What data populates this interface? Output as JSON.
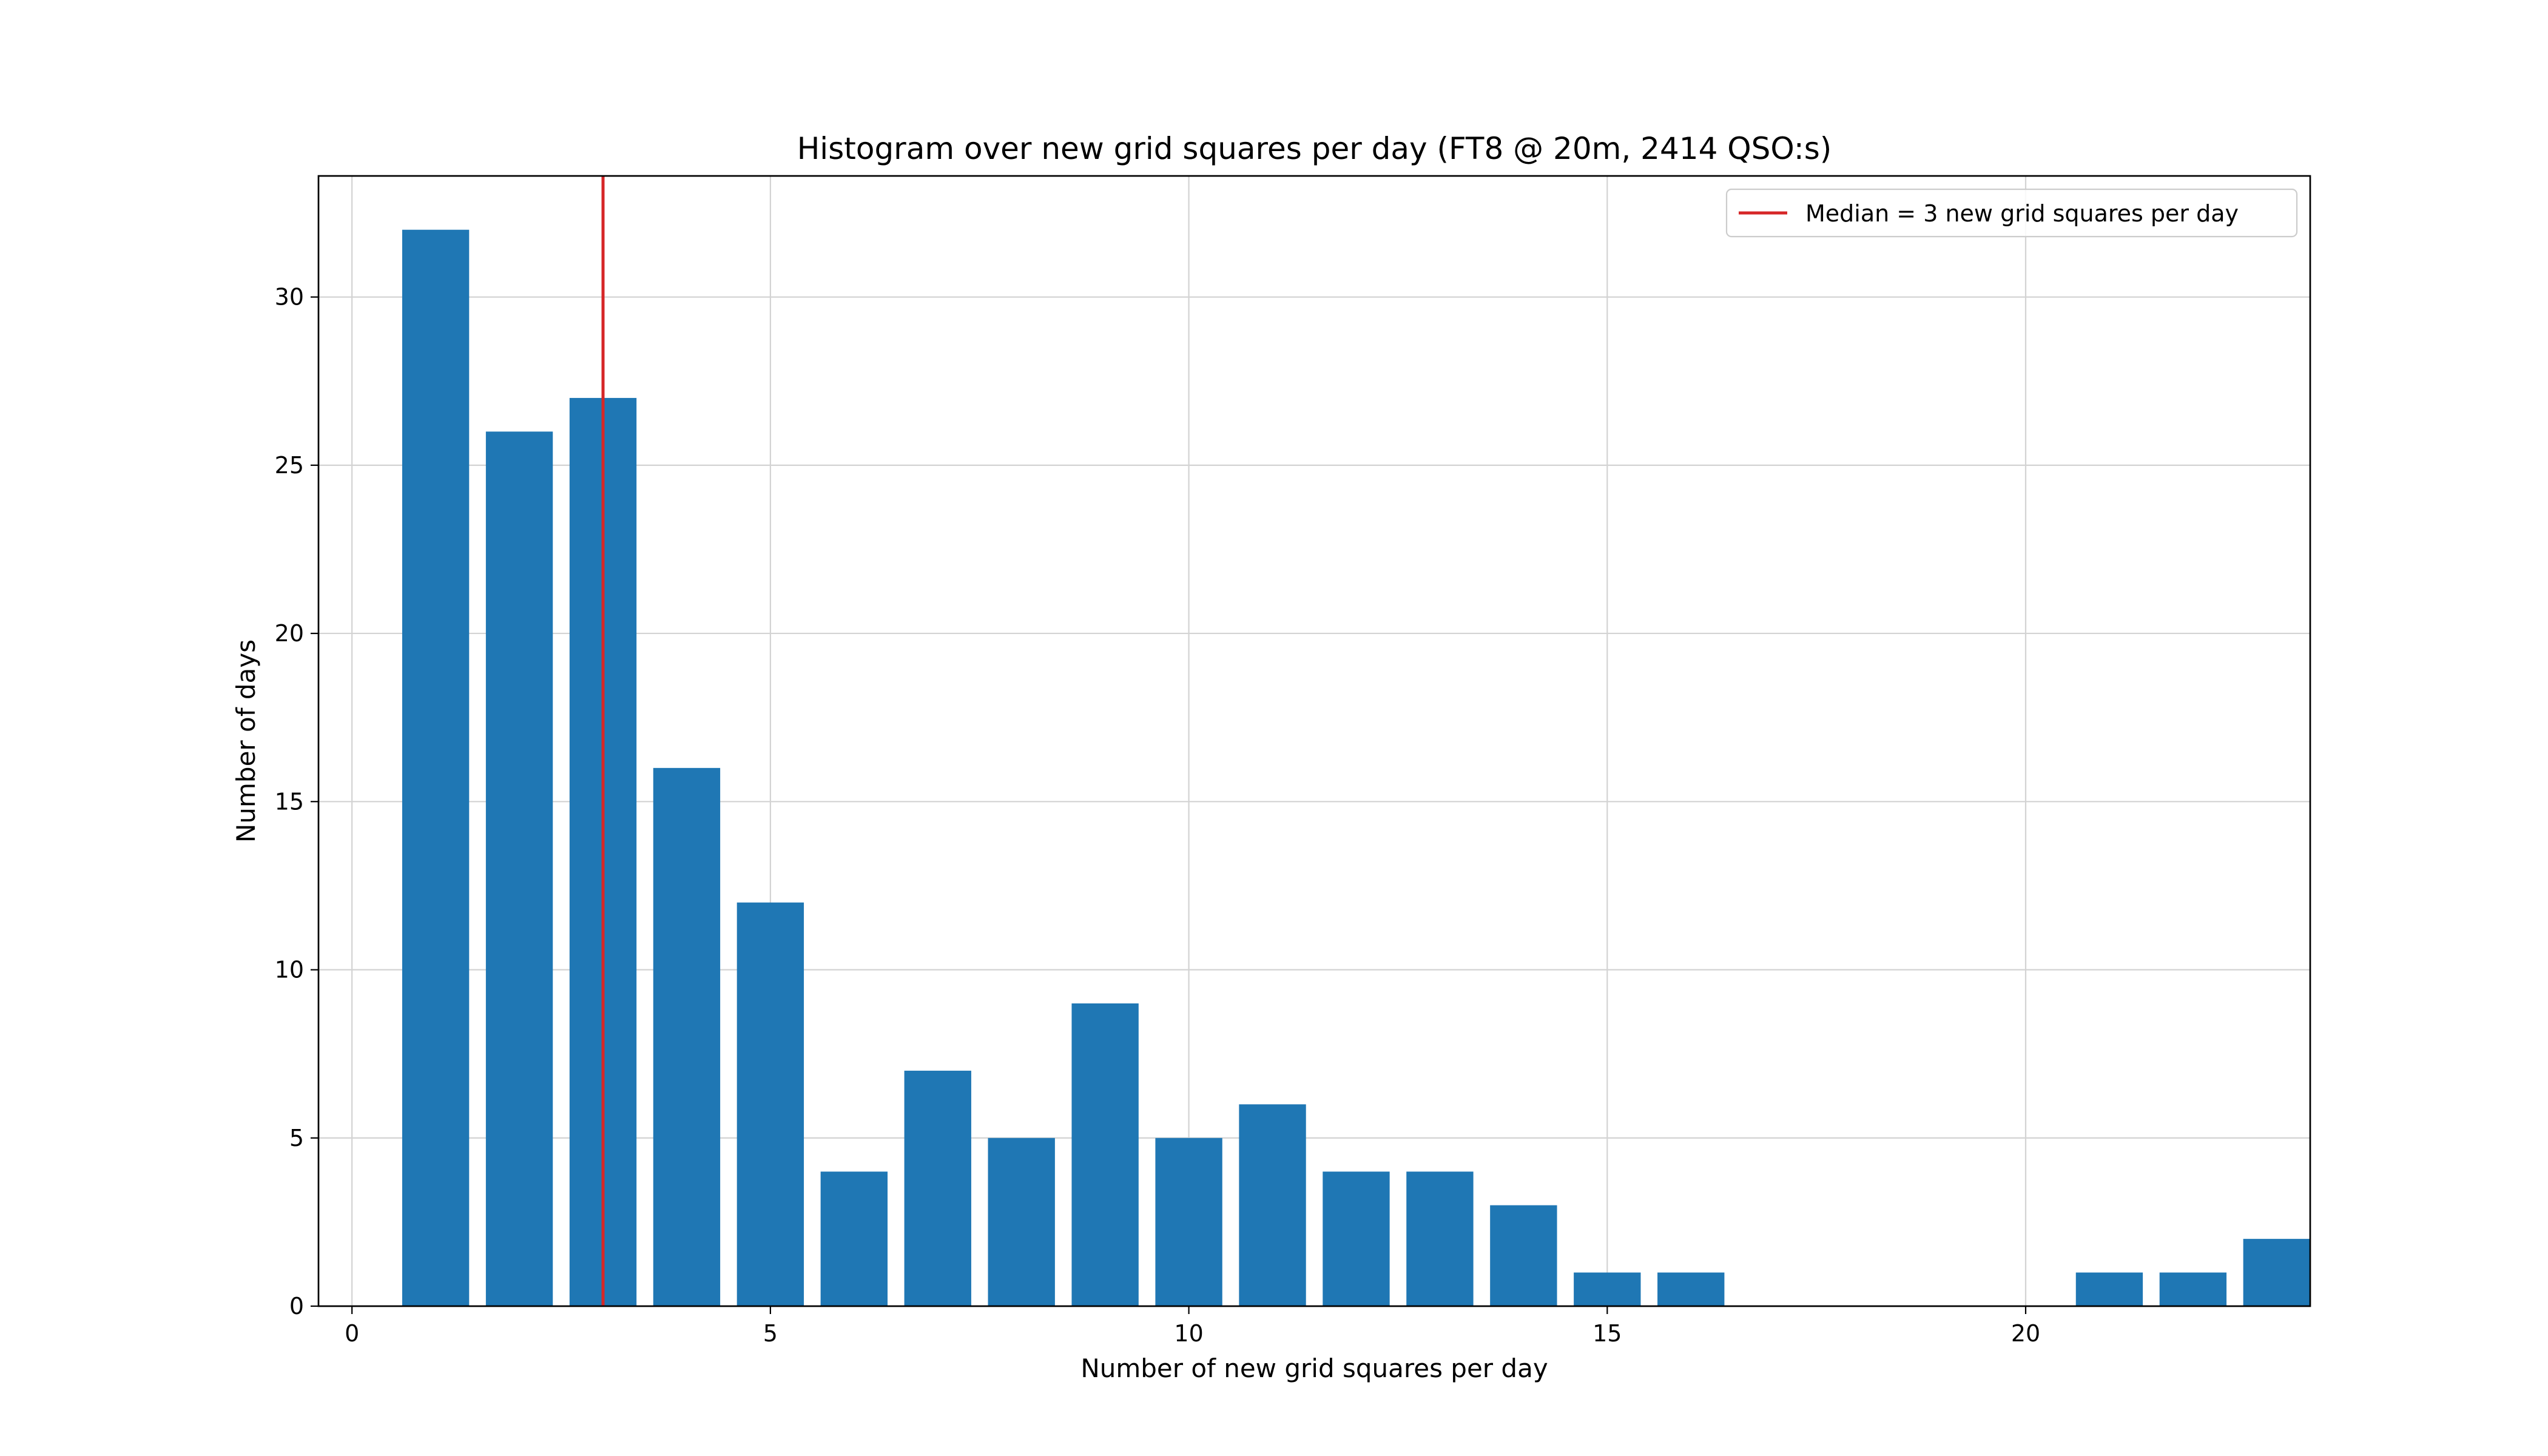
{
  "chart_data": {
    "type": "bar",
    "title": "Histogram over new grid squares per day (FT8 @ 20m, 2414 QSO:s)",
    "xlabel": "Number of new grid squares per day",
    "ylabel": "Number of days",
    "x": [
      1,
      2,
      3,
      4,
      5,
      6,
      7,
      8,
      9,
      10,
      11,
      12,
      13,
      14,
      15,
      16,
      21,
      22,
      23
    ],
    "values": [
      32,
      26,
      27,
      16,
      12,
      4,
      7,
      5,
      9,
      5,
      6,
      4,
      4,
      3,
      1,
      1,
      1,
      1,
      2
    ],
    "bar_width": 0.8,
    "xlim": [
      -0.4,
      23.4
    ],
    "ylim": [
      0,
      33.6
    ],
    "x_ticks": [
      0,
      5,
      10,
      15,
      20
    ],
    "y_ticks": [
      0,
      5,
      10,
      15,
      20,
      25,
      30
    ],
    "grid": true,
    "median": 3,
    "legend": {
      "position": "upper right",
      "entries": [
        {
          "label": "Median = 3 new grid squares per day",
          "color": "#d62728"
        }
      ]
    },
    "colors": {
      "bar": "#1f77b4",
      "median_line": "#d62728",
      "grid": "#d3d3d3"
    }
  }
}
